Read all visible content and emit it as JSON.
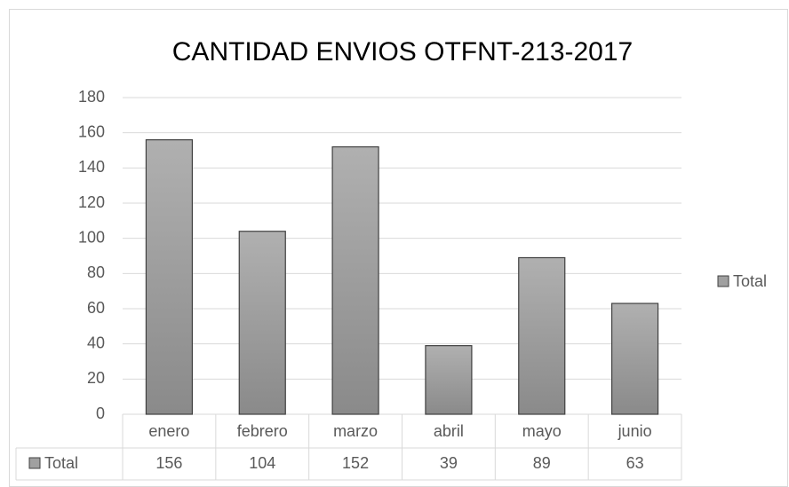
{
  "chart_data": {
    "type": "bar",
    "title": "CANTIDAD ENVIOS OTFNT-213-2017",
    "categories": [
      "enero",
      "febrero",
      "marzo",
      "abril",
      "mayo",
      "junio"
    ],
    "series": [
      {
        "name": "Total",
        "color": "#a0a0a0",
        "values": [
          156,
          104,
          152,
          39,
          89,
          63
        ]
      }
    ],
    "ylim": [
      0,
      180
    ],
    "yticks": [
      0,
      20,
      40,
      60,
      80,
      100,
      120,
      140,
      160,
      180
    ],
    "grid": true,
    "legend": "right",
    "data_table": true
  }
}
